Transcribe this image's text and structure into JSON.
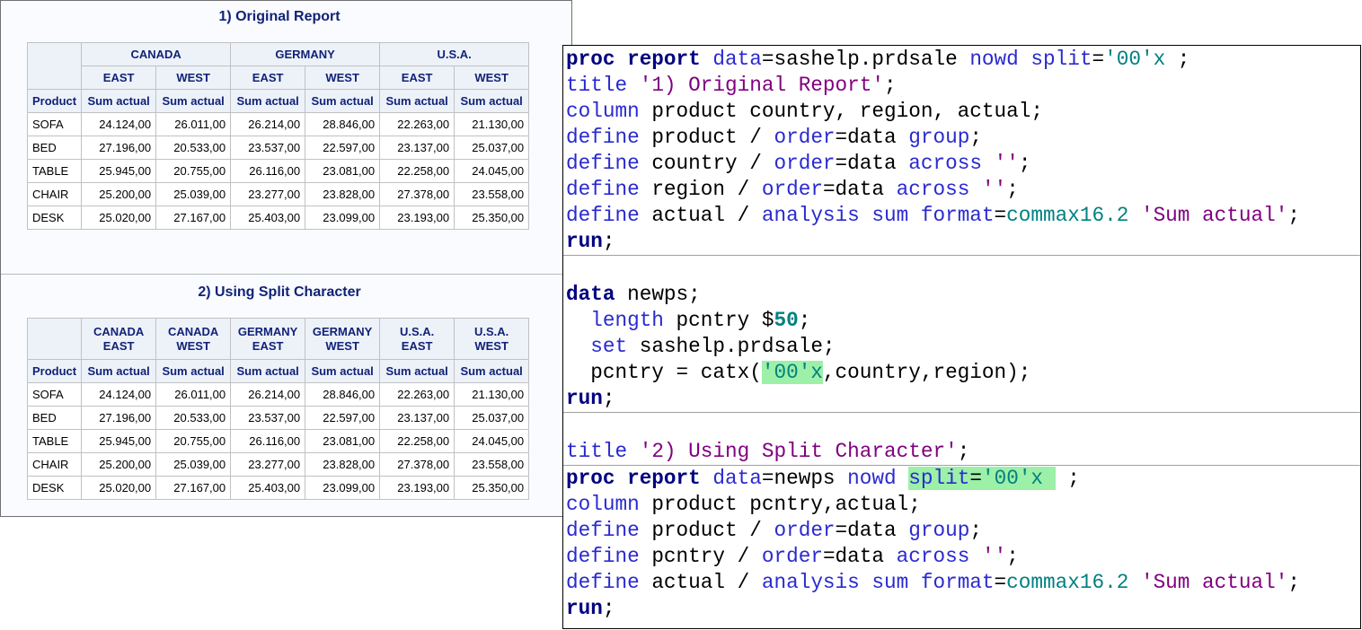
{
  "report1": {
    "title": "1) Original Report",
    "header_groups": [
      "CANADA",
      "GERMANY",
      "U.S.A."
    ],
    "header_subgroups": [
      "EAST",
      "WEST",
      "EAST",
      "WEST",
      "EAST",
      "WEST"
    ],
    "row_header": "Product",
    "columns": [
      "Sum actual",
      "Sum actual",
      "Sum actual",
      "Sum actual",
      "Sum actual",
      "Sum actual"
    ],
    "rows": [
      [
        "SOFA",
        "24.124,00",
        "26.011,00",
        "26.214,00",
        "28.846,00",
        "22.263,00",
        "21.130,00"
      ],
      [
        "BED",
        "27.196,00",
        "20.533,00",
        "23.537,00",
        "22.597,00",
        "23.137,00",
        "25.037,00"
      ],
      [
        "TABLE",
        "25.945,00",
        "20.755,00",
        "26.116,00",
        "23.081,00",
        "22.258,00",
        "24.045,00"
      ],
      [
        "CHAIR",
        "25.200,00",
        "25.039,00",
        "23.277,00",
        "23.828,00",
        "27.378,00",
        "23.558,00"
      ],
      [
        "DESK",
        "25.020,00",
        "27.167,00",
        "25.403,00",
        "23.099,00",
        "23.193,00",
        "25.350,00"
      ]
    ]
  },
  "report2": {
    "title": "2) Using Split Character",
    "headers": [
      [
        "CANADA",
        "EAST"
      ],
      [
        "CANADA",
        "WEST"
      ],
      [
        "GERMANY",
        "EAST"
      ],
      [
        "GERMANY",
        "WEST"
      ],
      [
        "U.S.A.",
        "EAST"
      ],
      [
        "U.S.A.",
        "WEST"
      ]
    ],
    "row_header": "Product",
    "columns": [
      "Sum actual",
      "Sum actual",
      "Sum actual",
      "Sum actual",
      "Sum actual",
      "Sum actual"
    ],
    "rows": [
      [
        "SOFA",
        "24.124,00",
        "26.011,00",
        "26.214,00",
        "28.846,00",
        "22.263,00",
        "21.130,00"
      ],
      [
        "BED",
        "27.196,00",
        "20.533,00",
        "23.537,00",
        "22.597,00",
        "23.137,00",
        "25.037,00"
      ],
      [
        "TABLE",
        "25.945,00",
        "20.755,00",
        "26.116,00",
        "23.081,00",
        "22.258,00",
        "24.045,00"
      ],
      [
        "CHAIR",
        "25.200,00",
        "25.039,00",
        "23.277,00",
        "23.828,00",
        "27.378,00",
        "23.558,00"
      ],
      [
        "DESK",
        "25.020,00",
        "27.167,00",
        "25.403,00",
        "23.099,00",
        "23.193,00",
        "25.350,00"
      ]
    ]
  },
  "code": {
    "blocks": [
      {
        "lines": [
          {
            "tokens": [
              {
                "text": "proc report",
                "color": "#000080",
                "bold": true
              },
              {
                "text": " ",
                "color": "#000000"
              },
              {
                "text": "data",
                "color": "#2a2ad0"
              },
              {
                "text": "=sashelp.prdsale ",
                "color": "#000000"
              },
              {
                "text": "nowd",
                "color": "#2a2ad0"
              },
              {
                "text": " ",
                "color": "#000000"
              },
              {
                "text": "split",
                "color": "#2a2ad0"
              },
              {
                "text": "=",
                "color": "#000000"
              },
              {
                "text": "'00'x",
                "color": "#008080"
              },
              {
                "text": " ;",
                "color": "#000000"
              }
            ]
          },
          {
            "tokens": [
              {
                "text": "title",
                "color": "#2a2ad0"
              },
              {
                "text": " ",
                "color": "#000000"
              },
              {
                "text": "'1) Original Report'",
                "color": "#800080"
              },
              {
                "text": ";",
                "color": "#000000"
              }
            ]
          },
          {
            "tokens": [
              {
                "text": "column",
                "color": "#2a2ad0"
              },
              {
                "text": " product country, region, actual;",
                "color": "#000000"
              }
            ]
          },
          {
            "tokens": [
              {
                "text": "define",
                "color": "#2a2ad0"
              },
              {
                "text": " product / ",
                "color": "#000000"
              },
              {
                "text": "order",
                "color": "#2a2ad0"
              },
              {
                "text": "=data ",
                "color": "#000000"
              },
              {
                "text": "group",
                "color": "#2a2ad0"
              },
              {
                "text": ";",
                "color": "#000000"
              }
            ]
          },
          {
            "tokens": [
              {
                "text": "define",
                "color": "#2a2ad0"
              },
              {
                "text": " country / ",
                "color": "#000000"
              },
              {
                "text": "order",
                "color": "#2a2ad0"
              },
              {
                "text": "=data ",
                "color": "#000000"
              },
              {
                "text": "across",
                "color": "#2a2ad0"
              },
              {
                "text": " ",
                "color": "#000000"
              },
              {
                "text": "''",
                "color": "#800080"
              },
              {
                "text": ";",
                "color": "#000000"
              }
            ]
          },
          {
            "tokens": [
              {
                "text": "define",
                "color": "#2a2ad0"
              },
              {
                "text": " region / ",
                "color": "#000000"
              },
              {
                "text": "order",
                "color": "#2a2ad0"
              },
              {
                "text": "=data ",
                "color": "#000000"
              },
              {
                "text": "across",
                "color": "#2a2ad0"
              },
              {
                "text": " ",
                "color": "#000000"
              },
              {
                "text": "''",
                "color": "#800080"
              },
              {
                "text": ";",
                "color": "#000000"
              }
            ]
          },
          {
            "tokens": [
              {
                "text": "define",
                "color": "#2a2ad0"
              },
              {
                "text": " actual / ",
                "color": "#000000"
              },
              {
                "text": "analysis sum format",
                "color": "#2a2ad0"
              },
              {
                "text": "=",
                "color": "#000000"
              },
              {
                "text": "commax16.2",
                "color": "#008080"
              },
              {
                "text": " ",
                "color": "#000000"
              },
              {
                "text": "'Sum actual'",
                "color": "#800080"
              },
              {
                "text": ";",
                "color": "#000000"
              }
            ]
          },
          {
            "tokens": [
              {
                "text": "run",
                "color": "#000080",
                "bold": true
              },
              {
                "text": ";",
                "color": "#000000"
              }
            ]
          }
        ]
      },
      {
        "lines": [
          {
            "tokens": []
          },
          {
            "tokens": [
              {
                "text": "data",
                "color": "#000080",
                "bold": true
              },
              {
                "text": " newps;",
                "color": "#000000"
              }
            ]
          },
          {
            "tokens": [
              {
                "text": "  ",
                "color": "#000000"
              },
              {
                "text": "length",
                "color": "#2a2ad0"
              },
              {
                "text": " pcntry $",
                "color": "#000000"
              },
              {
                "text": "50",
                "color": "#008080",
                "bold": true
              },
              {
                "text": ";",
                "color": "#000000"
              }
            ]
          },
          {
            "tokens": [
              {
                "text": "  ",
                "color": "#000000"
              },
              {
                "text": "set",
                "color": "#2a2ad0"
              },
              {
                "text": " sashelp.prdsale;",
                "color": "#000000"
              }
            ]
          },
          {
            "tokens": [
              {
                "text": "  pcntry = catx(",
                "color": "#000000"
              },
              {
                "text": "'00'x",
                "color": "#008080",
                "highlight": true
              },
              {
                "text": ",country,region);",
                "color": "#000000"
              }
            ]
          },
          {
            "tokens": [
              {
                "text": "run",
                "color": "#000080",
                "bold": true
              },
              {
                "text": ";",
                "color": "#000000"
              }
            ]
          }
        ]
      },
      {
        "lines": [
          {
            "tokens": []
          },
          {
            "tokens": [
              {
                "text": "title",
                "color": "#2a2ad0"
              },
              {
                "text": " ",
                "color": "#000000"
              },
              {
                "text": "'2) Using Split Character'",
                "color": "#800080"
              },
              {
                "text": ";",
                "color": "#000000"
              }
            ]
          }
        ]
      },
      {
        "lines": [
          {
            "tokens": [
              {
                "text": "proc report",
                "color": "#000080",
                "bold": true
              },
              {
                "text": " ",
                "color": "#000000"
              },
              {
                "text": "data",
                "color": "#2a2ad0"
              },
              {
                "text": "=newps ",
                "color": "#000000"
              },
              {
                "text": "nowd",
                "color": "#2a2ad0"
              },
              {
                "text": " ",
                "color": "#000000"
              },
              {
                "text": "split",
                "color": "#2a2ad0",
                "highlight": true
              },
              {
                "text": "=",
                "color": "#000000",
                "highlight": true
              },
              {
                "text": "'00'x",
                "color": "#008080",
                "highlight": true
              },
              {
                "text": " ",
                "color": "#000000",
                "highlight": true
              },
              {
                "text": " ;",
                "color": "#000000"
              }
            ]
          },
          {
            "tokens": [
              {
                "text": "column",
                "color": "#2a2ad0"
              },
              {
                "text": " product pcntry,actual;",
                "color": "#000000"
              }
            ]
          },
          {
            "tokens": [
              {
                "text": "define",
                "color": "#2a2ad0"
              },
              {
                "text": " product / ",
                "color": "#000000"
              },
              {
                "text": "order",
                "color": "#2a2ad0"
              },
              {
                "text": "=data ",
                "color": "#000000"
              },
              {
                "text": "group",
                "color": "#2a2ad0"
              },
              {
                "text": ";",
                "color": "#000000"
              }
            ]
          },
          {
            "tokens": [
              {
                "text": "define",
                "color": "#2a2ad0"
              },
              {
                "text": " pcntry / ",
                "color": "#000000"
              },
              {
                "text": "order",
                "color": "#2a2ad0"
              },
              {
                "text": "=data ",
                "color": "#000000"
              },
              {
                "text": "across",
                "color": "#2a2ad0"
              },
              {
                "text": " ",
                "color": "#000000"
              },
              {
                "text": "''",
                "color": "#800080"
              },
              {
                "text": ";",
                "color": "#000000"
              }
            ]
          },
          {
            "tokens": [
              {
                "text": "define",
                "color": "#2a2ad0"
              },
              {
                "text": " actual / ",
                "color": "#000000"
              },
              {
                "text": "analysis sum format",
                "color": "#2a2ad0"
              },
              {
                "text": "=",
                "color": "#000000"
              },
              {
                "text": "commax16.2",
                "color": "#008080"
              },
              {
                "text": " ",
                "color": "#000000"
              },
              {
                "text": "'Sum actual'",
                "color": "#800080"
              },
              {
                "text": ";",
                "color": "#000000"
              }
            ]
          },
          {
            "tokens": [
              {
                "text": "run",
                "color": "#000080",
                "bold": true
              },
              {
                "text": ";",
                "color": "#000000"
              }
            ]
          }
        ]
      }
    ]
  }
}
